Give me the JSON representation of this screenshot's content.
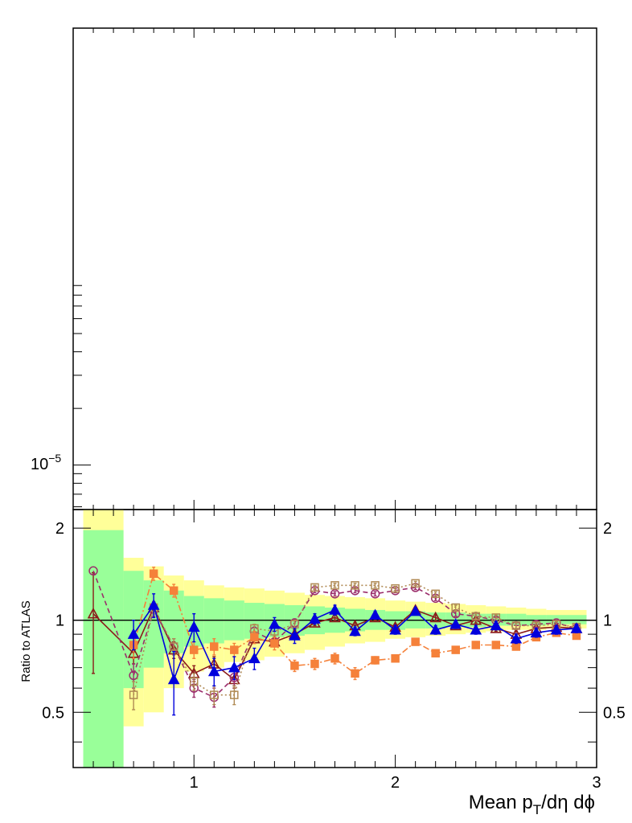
{
  "chart_data": [
    {
      "type": "line",
      "panel": "main",
      "yscale": "log",
      "ylim": [
        5.8e-06,
        0.0021
      ],
      "xlim": [
        0.4,
        3.0
      ],
      "yticks": [
        {
          "value": 1e-05,
          "base": "10",
          "exp": "−5"
        }
      ],
      "series": []
    },
    {
      "type": "line",
      "panel": "ratio",
      "ylabel": "Ratio to ATLAS",
      "xlabel": {
        "prefix": "Mean p",
        "sub": "T",
        "suffix": "/dη dϕ"
      },
      "xlim": [
        0.4,
        3.0
      ],
      "ylim": [
        0.33,
        2.3
      ],
      "xticks": [
        {
          "value": 1,
          "label": "1"
        },
        {
          "value": 2,
          "label": "2"
        },
        {
          "value": 3,
          "label": "3"
        }
      ],
      "yticks": [
        {
          "value": 0.5,
          "label": "0.5"
        },
        {
          "value": 1,
          "label": "1"
        },
        {
          "value": 2,
          "label": "2"
        }
      ],
      "reference_line": 1,
      "bands": {
        "edges": [
          0.45,
          0.65,
          0.75,
          0.85,
          0.95,
          1.05,
          1.15,
          1.25,
          1.35,
          1.45,
          1.55,
          1.65,
          1.75,
          1.85,
          1.95,
          2.05,
          2.15,
          2.25,
          2.35,
          2.45,
          2.55,
          2.65,
          2.75,
          2.95
        ],
        "yellow": [
          [
            0.33,
            2.35
          ],
          [
            0.45,
            1.6
          ],
          [
            0.5,
            1.5
          ],
          [
            0.6,
            1.4
          ],
          [
            0.68,
            1.35
          ],
          [
            0.7,
            1.3
          ],
          [
            0.73,
            1.28
          ],
          [
            0.74,
            1.27
          ],
          [
            0.76,
            1.25
          ],
          [
            0.78,
            1.23
          ],
          [
            0.8,
            1.21
          ],
          [
            0.82,
            1.2
          ],
          [
            0.84,
            1.19
          ],
          [
            0.85,
            1.18
          ],
          [
            0.87,
            1.16
          ],
          [
            0.88,
            1.15
          ],
          [
            0.89,
            1.14
          ],
          [
            0.9,
            1.13
          ],
          [
            0.91,
            1.12
          ],
          [
            0.92,
            1.11
          ],
          [
            0.93,
            1.1
          ],
          [
            0.93,
            1.09
          ],
          [
            0.94,
            1.08
          ]
        ],
        "green": [
          [
            0.33,
            1.97
          ],
          [
            0.6,
            1.45
          ],
          [
            0.7,
            1.35
          ],
          [
            0.78,
            1.25
          ],
          [
            0.82,
            1.2
          ],
          [
            0.84,
            1.18
          ],
          [
            0.86,
            1.16
          ],
          [
            0.87,
            1.14
          ],
          [
            0.88,
            1.13
          ],
          [
            0.89,
            1.12
          ],
          [
            0.9,
            1.11
          ],
          [
            0.91,
            1.1
          ],
          [
            0.92,
            1.09
          ],
          [
            0.93,
            1.08
          ],
          [
            0.93,
            1.07
          ],
          [
            0.94,
            1.07
          ],
          [
            0.94,
            1.06
          ],
          [
            0.95,
            1.06
          ],
          [
            0.95,
            1.05
          ],
          [
            0.96,
            1.05
          ],
          [
            0.96,
            1.05
          ],
          [
            0.96,
            1.04
          ],
          [
            0.97,
            1.04
          ]
        ]
      },
      "series": [
        {
          "name": "model-brown-open-triangle",
          "color": "#8b1a1a",
          "marker": "open-triangle",
          "dash": "",
          "x": [
            0.5,
            0.7,
            0.8,
            0.9,
            1.0,
            1.1,
            1.2,
            1.3,
            1.4,
            1.5,
            1.6,
            1.7,
            1.8,
            1.9,
            2.0,
            2.1,
            2.2,
            2.3,
            2.4,
            2.5,
            2.6,
            2.7,
            2.8,
            2.9
          ],
          "y": [
            1.05,
            0.78,
            1.1,
            0.8,
            0.67,
            0.72,
            0.64,
            0.87,
            0.85,
            0.9,
            0.98,
            1.02,
            0.96,
            1.02,
            0.95,
            1.08,
            1.02,
            0.96,
            1.0,
            0.94,
            0.9,
            0.94,
            0.95,
            0.94
          ],
          "yerr": [
            0.38,
            0.06,
            0.05,
            0.05,
            0.04,
            0.04,
            0.04,
            0.03,
            0.03,
            0.03,
            0.02,
            0.02,
            0.02,
            0.02,
            0.02,
            0.02,
            0.02,
            0.02,
            0.02,
            0.02,
            0.02,
            0.02,
            0.02,
            0.02
          ]
        },
        {
          "name": "model-purple-open-circle",
          "color": "#9b2d6b",
          "marker": "open-circle",
          "dash": "6,4",
          "x": [
            0.5,
            0.7,
            0.8,
            0.9,
            1.0,
            1.1,
            1.2,
            1.3,
            1.4,
            1.5,
            1.6,
            1.7,
            1.8,
            1.9,
            2.0,
            2.1,
            2.2,
            2.3,
            2.4,
            2.5,
            2.6,
            2.7,
            2.8,
            2.9
          ],
          "y": [
            1.45,
            0.66,
            1.08,
            0.82,
            0.6,
            0.56,
            0.65,
            0.92,
            0.85,
            0.98,
            1.25,
            1.22,
            1.25,
            1.22,
            1.25,
            1.28,
            1.18,
            1.05,
            1.03,
            1.0,
            0.96,
            0.97,
            0.98,
            0.94
          ],
          "yerr": [
            0.0,
            0.06,
            0.05,
            0.05,
            0.04,
            0.04,
            0.04,
            0.03,
            0.03,
            0.03,
            0.02,
            0.02,
            0.02,
            0.02,
            0.02,
            0.02,
            0.02,
            0.02,
            0.02,
            0.02,
            0.02,
            0.02,
            0.02,
            0.02
          ]
        },
        {
          "name": "model-olive-open-square",
          "color": "#b08a54",
          "marker": "open-square",
          "dash": "2,3",
          "x": [
            0.7,
            0.8,
            0.9,
            1.0,
            1.1,
            1.2,
            1.3,
            1.4,
            1.5,
            1.6,
            1.7,
            1.8,
            1.9,
            2.0,
            2.1,
            2.2,
            2.3,
            2.4,
            2.5,
            2.6,
            2.7,
            2.8,
            2.9
          ],
          "y": [
            0.57,
            1.1,
            0.82,
            0.63,
            0.57,
            0.57,
            0.94,
            0.92,
            0.97,
            1.28,
            1.3,
            1.3,
            1.3,
            1.27,
            1.32,
            1.22,
            1.1,
            1.03,
            1.02,
            0.96,
            0.96,
            0.97,
            0.95
          ],
          "yerr": [
            0.06,
            0.05,
            0.05,
            0.04,
            0.04,
            0.04,
            0.03,
            0.03,
            0.03,
            0.02,
            0.02,
            0.02,
            0.02,
            0.02,
            0.02,
            0.02,
            0.02,
            0.02,
            0.02,
            0.02,
            0.02,
            0.02,
            0.02
          ]
        },
        {
          "name": "model-orange-filled-square",
          "color": "#f5813a",
          "marker": "filled-square",
          "dash": "8,3,2,3",
          "x": [
            0.7,
            0.8,
            0.9,
            1.0,
            1.1,
            1.2,
            1.3,
            1.4,
            1.5,
            1.6,
            1.7,
            1.8,
            1.9,
            2.0,
            2.1,
            2.2,
            2.3,
            2.4,
            2.5,
            2.6,
            2.7,
            2.8,
            2.9
          ],
          "y": [
            0.83,
            1.42,
            1.25,
            0.8,
            0.82,
            0.8,
            0.88,
            0.84,
            0.71,
            0.72,
            0.75,
            0.67,
            0.74,
            0.75,
            0.85,
            0.78,
            0.8,
            0.83,
            0.83,
            0.82,
            0.88,
            0.91,
            0.89
          ],
          "yerr": [
            0.08,
            0.07,
            0.06,
            0.05,
            0.05,
            0.04,
            0.04,
            0.04,
            0.03,
            0.03,
            0.03,
            0.03,
            0.02,
            0.02,
            0.02,
            0.02,
            0.02,
            0.02,
            0.02,
            0.02,
            0.02,
            0.02,
            0.02
          ]
        },
        {
          "name": "model-blue-filled-triangle",
          "color": "#0000dd",
          "marker": "filled-triangle",
          "dash": "",
          "x": [
            0.7,
            0.8,
            0.9,
            1.0,
            1.1,
            1.2,
            1.3,
            1.4,
            1.5,
            1.6,
            1.7,
            1.8,
            1.9,
            2.0,
            2.1,
            2.2,
            2.3,
            2.4,
            2.5,
            2.6,
            2.7,
            2.8,
            2.9
          ],
          "y": [
            0.9,
            1.12,
            0.64,
            0.95,
            0.68,
            0.7,
            0.75,
            0.97,
            0.89,
            1.01,
            1.08,
            0.92,
            1.04,
            0.93,
            1.07,
            0.93,
            0.97,
            0.93,
            0.96,
            0.87,
            0.91,
            0.93,
            0.94
          ],
          "yerr": [
            0.1,
            0.1,
            0.15,
            0.1,
            0.07,
            0.06,
            0.06,
            0.05,
            0.05,
            0.04,
            0.04,
            0.03,
            0.03,
            0.03,
            0.03,
            0.03,
            0.03,
            0.03,
            0.03,
            0.03,
            0.03,
            0.03,
            0.03
          ]
        }
      ]
    }
  ]
}
